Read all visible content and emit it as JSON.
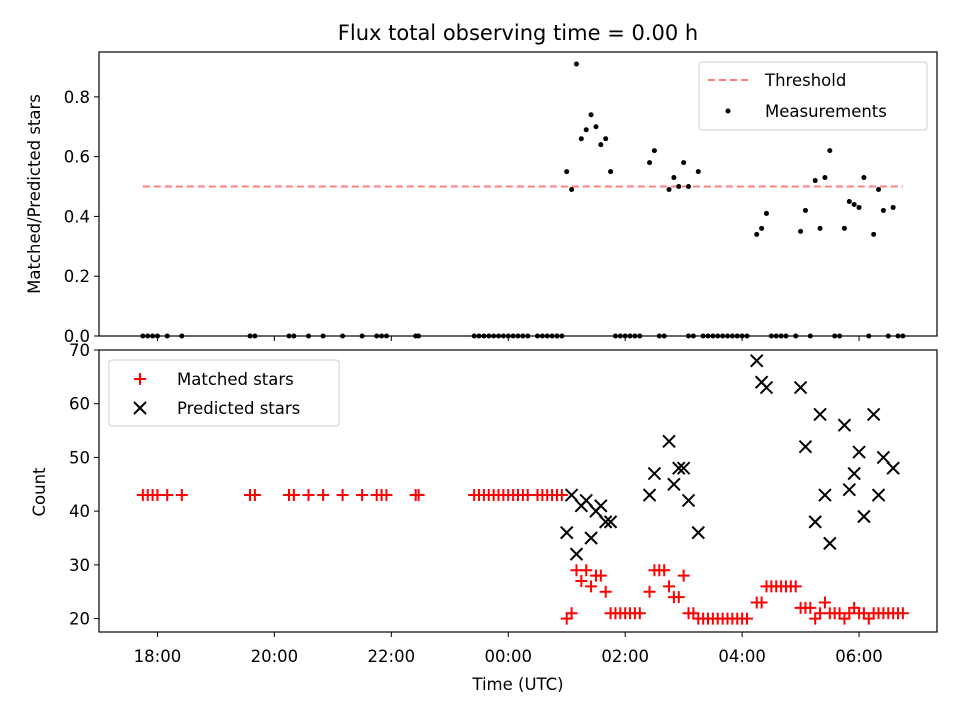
{
  "chart_data": [
    {
      "type": "scatter",
      "title": "Flux total observing time = 0.00 h",
      "ylabel": "Matched/Predicted stars",
      "xlabel": "",
      "ylim": [
        0,
        0.95
      ],
      "yticks": [
        0.0,
        0.2,
        0.4,
        0.6,
        0.8
      ],
      "ytick_labels": [
        "0.0",
        "0.2",
        "0.4",
        "0.6",
        "0.8"
      ],
      "legend_position": "top-right",
      "threshold": {
        "name": "Threshold",
        "value": 0.5,
        "x_range": [
          "17:45",
          "06:45"
        ],
        "color": "#ff7f7f",
        "style": "dashed"
      },
      "series": [
        {
          "name": "Measurements",
          "color": "#000000",
          "marker": "dot",
          "points": [
            [
              "17:45",
              0
            ],
            [
              "17:50",
              0
            ],
            [
              "17:55",
              0
            ],
            [
              "18:00",
              0
            ],
            [
              "18:10",
              0
            ],
            [
              "18:25",
              0
            ],
            [
              "19:35",
              0
            ],
            [
              "19:40",
              0
            ],
            [
              "20:15",
              0
            ],
            [
              "20:20",
              0
            ],
            [
              "20:35",
              0
            ],
            [
              "20:50",
              0
            ],
            [
              "21:10",
              0
            ],
            [
              "21:30",
              0
            ],
            [
              "21:45",
              0
            ],
            [
              "21:50",
              0
            ],
            [
              "21:55",
              0
            ],
            [
              "22:25",
              0
            ],
            [
              "22:28",
              0
            ],
            [
              "23:25",
              0
            ],
            [
              "23:30",
              0
            ],
            [
              "23:35",
              0
            ],
            [
              "23:40",
              0
            ],
            [
              "23:45",
              0
            ],
            [
              "23:50",
              0
            ],
            [
              "23:55",
              0
            ],
            [
              "00:00",
              0
            ],
            [
              "00:05",
              0
            ],
            [
              "00:10",
              0
            ],
            [
              "00:15",
              0
            ],
            [
              "00:20",
              0
            ],
            [
              "00:30",
              0
            ],
            [
              "00:35",
              0
            ],
            [
              "00:40",
              0
            ],
            [
              "00:45",
              0
            ],
            [
              "00:50",
              0
            ],
            [
              "00:55",
              0
            ],
            [
              "01:00",
              0.55
            ],
            [
              "01:05",
              0.49
            ],
            [
              "01:10",
              0.91
            ],
            [
              "01:15",
              0.66
            ],
            [
              "01:20",
              0.69
            ],
            [
              "01:25",
              0.74
            ],
            [
              "01:30",
              0.7
            ],
            [
              "01:35",
              0.64
            ],
            [
              "01:40",
              0.66
            ],
            [
              "01:45",
              0.55
            ],
            [
              "01:50",
              0
            ],
            [
              "01:55",
              0
            ],
            [
              "02:00",
              0
            ],
            [
              "02:05",
              0
            ],
            [
              "02:10",
              0
            ],
            [
              "02:15",
              0
            ],
            [
              "02:25",
              0.58
            ],
            [
              "02:30",
              0.62
            ],
            [
              "02:35",
              0
            ],
            [
              "02:40",
              0
            ],
            [
              "02:45",
              0.49
            ],
            [
              "02:50",
              0.53
            ],
            [
              "02:55",
              0.5
            ],
            [
              "03:00",
              0.58
            ],
            [
              "03:05",
              0.5
            ],
            [
              "03:15",
              0.55
            ],
            [
              "03:05",
              0
            ],
            [
              "03:10",
              0
            ],
            [
              "03:20",
              0
            ],
            [
              "03:25",
              0
            ],
            [
              "03:30",
              0
            ],
            [
              "03:35",
              0
            ],
            [
              "03:40",
              0
            ],
            [
              "03:45",
              0
            ],
            [
              "03:50",
              0
            ],
            [
              "03:55",
              0
            ],
            [
              "04:00",
              0
            ],
            [
              "04:05",
              0
            ],
            [
              "04:15",
              0.34
            ],
            [
              "04:20",
              0.36
            ],
            [
              "04:25",
              0.41
            ],
            [
              "04:30",
              0
            ],
            [
              "04:35",
              0
            ],
            [
              "04:40",
              0
            ],
            [
              "04:45",
              0
            ],
            [
              "04:55",
              0
            ],
            [
              "05:00",
              0.35
            ],
            [
              "05:05",
              0.42
            ],
            [
              "05:10",
              0
            ],
            [
              "05:15",
              0.52
            ],
            [
              "05:20",
              0.36
            ],
            [
              "05:25",
              0.53
            ],
            [
              "05:30",
              0.62
            ],
            [
              "05:35",
              0
            ],
            [
              "05:40",
              0
            ],
            [
              "05:45",
              0.36
            ],
            [
              "05:50",
              0.45
            ],
            [
              "05:55",
              0.44
            ],
            [
              "06:00",
              0.43
            ],
            [
              "06:05",
              0.53
            ],
            [
              "06:10",
              0
            ],
            [
              "06:15",
              0.34
            ],
            [
              "06:20",
              0.49
            ],
            [
              "06:25",
              0.42
            ],
            [
              "06:30",
              0
            ],
            [
              "06:35",
              0.43
            ],
            [
              "06:40",
              0
            ],
            [
              "06:45",
              0
            ]
          ]
        }
      ]
    },
    {
      "type": "scatter",
      "xlabel": "Time (UTC)",
      "ylabel": "Count",
      "ylim": [
        17.5,
        70
      ],
      "yticks": [
        20,
        30,
        40,
        50,
        60,
        70
      ],
      "ytick_labels": [
        "20",
        "30",
        "40",
        "50",
        "60",
        "70"
      ],
      "x_range": [
        "17:00",
        "07:20"
      ],
      "xticks": [
        "18:00",
        "20:00",
        "22:00",
        "00:00",
        "02:00",
        "04:00",
        "06:00"
      ],
      "xtick_labels": [
        "18:00",
        "20:00",
        "22:00",
        "00:00",
        "02:00",
        "04:00",
        "06:00"
      ],
      "legend_position": "top-left",
      "series": [
        {
          "name": "Matched stars",
          "color": "#ff0000",
          "marker": "plus",
          "points": [
            [
              "17:45",
              43
            ],
            [
              "17:50",
              43
            ],
            [
              "17:55",
              43
            ],
            [
              "18:00",
              43
            ],
            [
              "18:10",
              43
            ],
            [
              "18:25",
              43
            ],
            [
              "19:35",
              43
            ],
            [
              "19:40",
              43
            ],
            [
              "20:15",
              43
            ],
            [
              "20:20",
              43
            ],
            [
              "20:35",
              43
            ],
            [
              "20:50",
              43
            ],
            [
              "21:10",
              43
            ],
            [
              "21:30",
              43
            ],
            [
              "21:45",
              43
            ],
            [
              "21:50",
              43
            ],
            [
              "21:55",
              43
            ],
            [
              "22:25",
              43
            ],
            [
              "22:28",
              43
            ],
            [
              "23:25",
              43
            ],
            [
              "23:30",
              43
            ],
            [
              "23:35",
              43
            ],
            [
              "23:40",
              43
            ],
            [
              "23:45",
              43
            ],
            [
              "23:50",
              43
            ],
            [
              "23:55",
              43
            ],
            [
              "00:00",
              43
            ],
            [
              "00:05",
              43
            ],
            [
              "00:10",
              43
            ],
            [
              "00:15",
              43
            ],
            [
              "00:20",
              43
            ],
            [
              "00:30",
              43
            ],
            [
              "00:35",
              43
            ],
            [
              "00:40",
              43
            ],
            [
              "00:45",
              43
            ],
            [
              "00:50",
              43
            ],
            [
              "00:55",
              43
            ],
            [
              "01:00",
              20
            ],
            [
              "01:05",
              21
            ],
            [
              "01:10",
              29
            ],
            [
              "01:15",
              27
            ],
            [
              "01:20",
              29
            ],
            [
              "01:25",
              26
            ],
            [
              "01:30",
              28
            ],
            [
              "01:35",
              28
            ],
            [
              "01:40",
              25
            ],
            [
              "01:45",
              21
            ],
            [
              "01:50",
              21
            ],
            [
              "01:55",
              21
            ],
            [
              "02:00",
              21
            ],
            [
              "02:05",
              21
            ],
            [
              "02:10",
              21
            ],
            [
              "02:15",
              21
            ],
            [
              "02:25",
              25
            ],
            [
              "02:30",
              29
            ],
            [
              "02:35",
              29
            ],
            [
              "02:40",
              29
            ],
            [
              "02:45",
              26
            ],
            [
              "02:50",
              24
            ],
            [
              "02:55",
              24
            ],
            [
              "03:00",
              28
            ],
            [
              "03:05",
              21
            ],
            [
              "03:10",
              21
            ],
            [
              "03:15",
              20
            ],
            [
              "03:20",
              20
            ],
            [
              "03:25",
              20
            ],
            [
              "03:30",
              20
            ],
            [
              "03:35",
              20
            ],
            [
              "03:40",
              20
            ],
            [
              "03:45",
              20
            ],
            [
              "03:50",
              20
            ],
            [
              "03:55",
              20
            ],
            [
              "04:00",
              20
            ],
            [
              "04:05",
              20
            ],
            [
              "04:15",
              23
            ],
            [
              "04:20",
              23
            ],
            [
              "04:25",
              26
            ],
            [
              "04:30",
              26
            ],
            [
              "04:35",
              26
            ],
            [
              "04:40",
              26
            ],
            [
              "04:45",
              26
            ],
            [
              "04:50",
              26
            ],
            [
              "04:55",
              26
            ],
            [
              "05:00",
              22
            ],
            [
              "05:05",
              22
            ],
            [
              "05:10",
              22
            ],
            [
              "05:15",
              20
            ],
            [
              "05:20",
              21
            ],
            [
              "05:25",
              23
            ],
            [
              "05:30",
              21
            ],
            [
              "05:35",
              21
            ],
            [
              "05:40",
              21
            ],
            [
              "05:45",
              20
            ],
            [
              "05:50",
              21
            ],
            [
              "05:55",
              22
            ],
            [
              "06:00",
              21
            ],
            [
              "06:05",
              21
            ],
            [
              "06:10",
              20
            ],
            [
              "06:15",
              21
            ],
            [
              "06:20",
              21
            ],
            [
              "06:25",
              21
            ],
            [
              "06:30",
              21
            ],
            [
              "06:35",
              21
            ],
            [
              "06:40",
              21
            ],
            [
              "06:45",
              21
            ]
          ]
        },
        {
          "name": "Predicted stars",
          "color": "#000000",
          "marker": "x",
          "points": [
            [
              "01:00",
              36
            ],
            [
              "01:05",
              43
            ],
            [
              "01:10",
              32
            ],
            [
              "01:15",
              41
            ],
            [
              "01:20",
              42
            ],
            [
              "01:25",
              35
            ],
            [
              "01:30",
              40
            ],
            [
              "01:35",
              41
            ],
            [
              "01:40",
              38
            ],
            [
              "01:45",
              38
            ],
            [
              "02:25",
              43
            ],
            [
              "02:30",
              47
            ],
            [
              "02:45",
              53
            ],
            [
              "02:50",
              45
            ],
            [
              "02:55",
              48
            ],
            [
              "03:00",
              48
            ],
            [
              "03:05",
              42
            ],
            [
              "03:15",
              36
            ],
            [
              "04:15",
              68
            ],
            [
              "04:20",
              64
            ],
            [
              "04:25",
              63
            ],
            [
              "05:00",
              63
            ],
            [
              "05:05",
              52
            ],
            [
              "05:15",
              38
            ],
            [
              "05:20",
              58
            ],
            [
              "05:25",
              43
            ],
            [
              "05:30",
              34
            ],
            [
              "05:45",
              56
            ],
            [
              "05:50",
              44
            ],
            [
              "05:55",
              47
            ],
            [
              "06:00",
              51
            ],
            [
              "06:05",
              39
            ],
            [
              "06:15",
              58
            ],
            [
              "06:20",
              43
            ],
            [
              "06:25",
              50
            ],
            [
              "06:35",
              48
            ]
          ]
        }
      ]
    }
  ]
}
